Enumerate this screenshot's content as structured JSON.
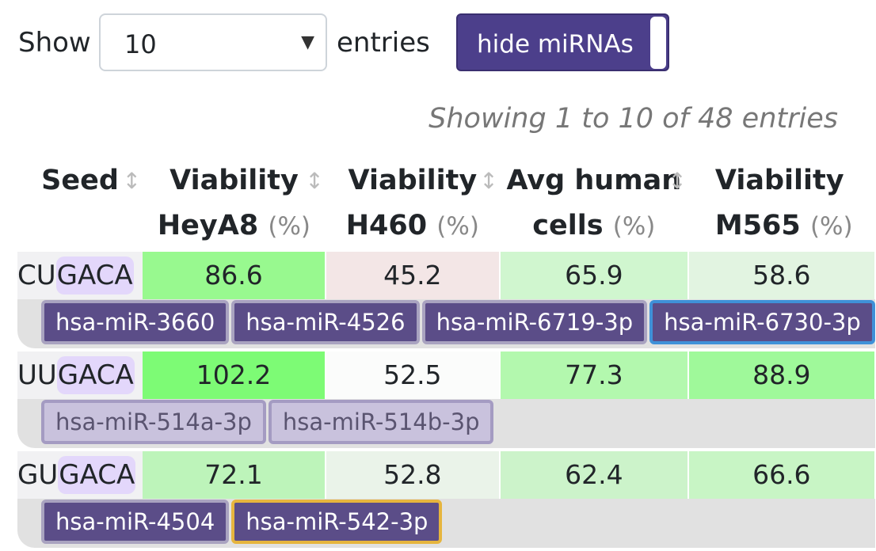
{
  "controls": {
    "show_label": "Show",
    "page_size": "10",
    "entries_label": "entries",
    "toggle_label": "hide miRNAs"
  },
  "info": "Showing 1 to 10 of 48 entries",
  "table": {
    "columns": [
      {
        "line1": "Seed",
        "line2": "",
        "unit": ""
      },
      {
        "line1": "Viability",
        "line2": "HeyA8",
        "unit": "(%)"
      },
      {
        "line1": "Viability",
        "line2": "H460",
        "unit": "(%)"
      },
      {
        "line1": "Avg human",
        "line2": "cells",
        "unit": "(%)"
      },
      {
        "line1": "Viability",
        "line2": "M565",
        "unit": "(%)"
      }
    ],
    "rows": [
      {
        "seed_prefix": "CU",
        "seed_rest": "GACA",
        "values": [
          "86.6",
          "45.2",
          "65.9",
          "58.6"
        ],
        "colors": [
          "#98f98f",
          "#f3e6e6",
          "#d0f6cf",
          "#e2f4e1"
        ],
        "mirnas": [
          {
            "name": "hsa-miR-3660",
            "style": "normal"
          },
          {
            "name": "hsa-miR-4526",
            "style": "normal"
          },
          {
            "name": "hsa-miR-6719-3p",
            "style": "normal"
          },
          {
            "name": "hsa-miR-6730-3p",
            "style": "blue"
          }
        ]
      },
      {
        "seed_prefix": "UU",
        "seed_rest": "GACA",
        "values": [
          "102.2",
          "52.5",
          "77.3",
          "88.9"
        ],
        "colors": [
          "#7dfb75",
          "#fbfcfb",
          "#b3f8ae",
          "#9ff99a"
        ],
        "mirnas": [
          {
            "name": "hsa-miR-514a-3p",
            "style": "faded"
          },
          {
            "name": "hsa-miR-514b-3p",
            "style": "faded"
          }
        ]
      },
      {
        "seed_prefix": "GU",
        "seed_rest": "GACA",
        "values": [
          "72.1",
          "52.8",
          "62.4",
          "66.6"
        ],
        "colors": [
          "#bdf4ba",
          "#eaf3e9",
          "#ccf3ca",
          "#c8f5c5"
        ],
        "mirnas": [
          {
            "name": "hsa-miR-4504",
            "style": "normal"
          },
          {
            "name": "hsa-miR-542-3p",
            "style": "gold"
          }
        ]
      }
    ]
  }
}
